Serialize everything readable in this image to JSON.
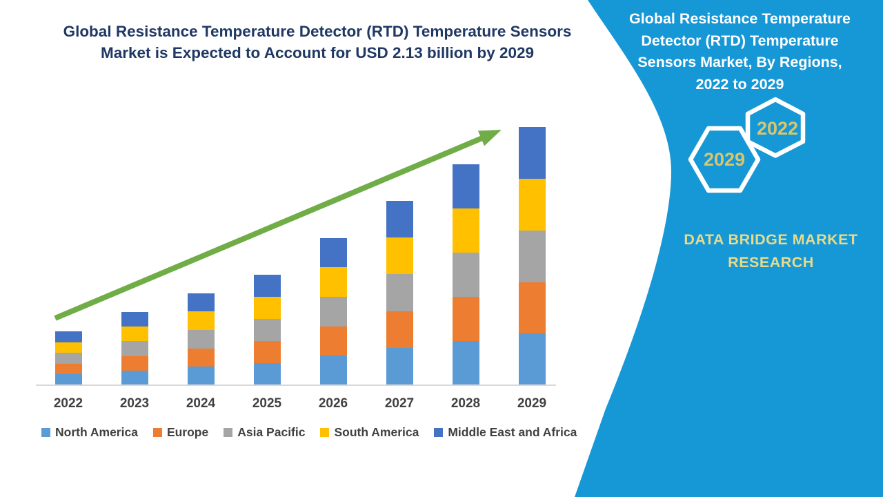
{
  "header": {
    "title_lines": [
      "Global Resistance Temperature Detector (RTD) Temperature Sensors",
      "Market is Expected to Account for USD 2.13 billion by 2029"
    ],
    "color": "#1F3864"
  },
  "chart_data": {
    "type": "bar",
    "stacked": true,
    "title": "Global Resistance Temperature Detector (RTD) Temperature Sensors Market",
    "xlabel": "",
    "ylabel": "",
    "unit": "USD billion",
    "categories": [
      "2022",
      "2023",
      "2024",
      "2025",
      "2026",
      "2027",
      "2028",
      "2029"
    ],
    "series": [
      {
        "name": "North America",
        "color": "#5B9BD5",
        "values": [
          0.089,
          0.121,
          0.152,
          0.183,
          0.243,
          0.305,
          0.365,
          0.426
        ]
      },
      {
        "name": "Europe",
        "color": "#ED7D31",
        "values": [
          0.089,
          0.121,
          0.152,
          0.183,
          0.243,
          0.305,
          0.365,
          0.426
        ]
      },
      {
        "name": "Asia Pacific",
        "color": "#A5A5A5",
        "values": [
          0.089,
          0.121,
          0.152,
          0.183,
          0.243,
          0.305,
          0.365,
          0.426
        ]
      },
      {
        "name": "South America",
        "color": "#FFC000",
        "values": [
          0.089,
          0.121,
          0.152,
          0.183,
          0.243,
          0.305,
          0.365,
          0.426
        ]
      },
      {
        "name": "Middle East and Africa",
        "color": "#4472C4",
        "values": [
          0.089,
          0.121,
          0.152,
          0.183,
          0.243,
          0.305,
          0.365,
          0.426
        ]
      }
    ],
    "totals": [
      0.45,
      0.61,
      0.76,
      0.91,
      1.22,
      1.52,
      1.83,
      2.13
    ],
    "highlight_value": "USD 2.13 billion by 2029",
    "ylim": [
      0,
      2.2
    ],
    "grid": false,
    "axis_line_color": "#D9D9D9",
    "legend_position": "bottom",
    "annotation": {
      "type": "trend-arrow",
      "direction": "up",
      "color": "#70AD47"
    }
  },
  "right_panel": {
    "bg_color": "#1697D6",
    "title_lines": [
      "Global Resistance Temperature",
      "Detector (RTD) Temperature",
      "Sensors Market, By Regions,",
      "2022 to 2029"
    ],
    "badge_years": {
      "start": "2022",
      "end": "2029"
    },
    "brand_lines": [
      "DATA BRIDGE MARKET",
      "RESEARCH"
    ],
    "gold_color": "#D8C66E"
  }
}
